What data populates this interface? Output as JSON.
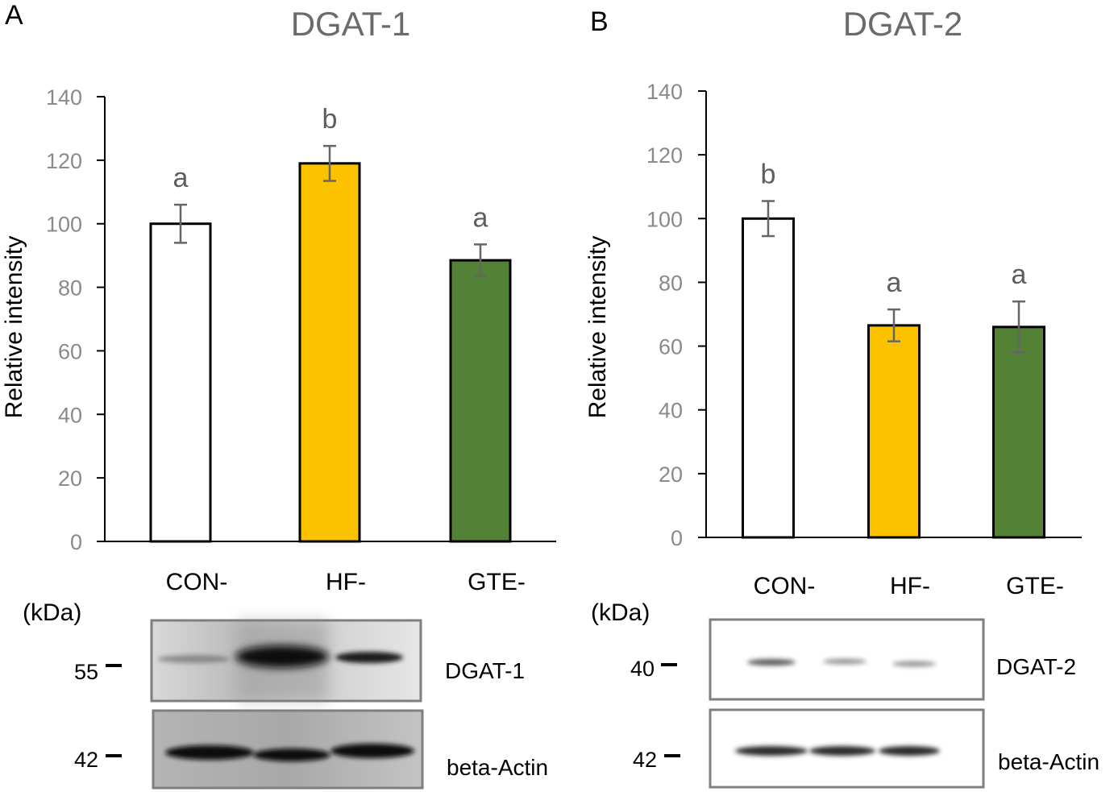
{
  "chart_data": [
    {
      "panel": "A",
      "title": "DGAT-1",
      "type": "bar",
      "ylabel": "Relative intensity",
      "xlabel": "",
      "ylim": [
        0,
        140
      ],
      "yticks": [
        0,
        20,
        40,
        60,
        80,
        100,
        120,
        140
      ],
      "categories": [
        "CON-",
        "HF-",
        "GTE-"
      ],
      "values": [
        100,
        119,
        88.5
      ],
      "errors": [
        6,
        5.5,
        5
      ],
      "significance": [
        "a",
        "b",
        "a"
      ],
      "colors": [
        "#ffffff",
        "#fcc200",
        "#538135"
      ],
      "blot": {
        "unit_label": "(kDa)",
        "rows": [
          {
            "marker": "55",
            "protein": "DGAT-1"
          },
          {
            "marker": "42",
            "protein": "beta-Actin"
          }
        ]
      }
    },
    {
      "panel": "B",
      "title": "DGAT-2",
      "type": "bar",
      "ylabel": "Relative intensity",
      "xlabel": "",
      "ylim": [
        0,
        140
      ],
      "yticks": [
        0,
        20,
        40,
        60,
        80,
        100,
        120,
        140
      ],
      "categories": [
        "CON-",
        "HF-",
        "GTE-"
      ],
      "values": [
        100,
        66.5,
        66
      ],
      "errors": [
        5.5,
        5,
        8
      ],
      "significance": [
        "b",
        "a",
        "a"
      ],
      "colors": [
        "#ffffff",
        "#fcc200",
        "#538135"
      ],
      "blot": {
        "unit_label": "(kDa)",
        "rows": [
          {
            "marker": "40",
            "protein": "DGAT-2"
          },
          {
            "marker": "42",
            "protein": "beta-Actin"
          }
        ]
      }
    }
  ]
}
